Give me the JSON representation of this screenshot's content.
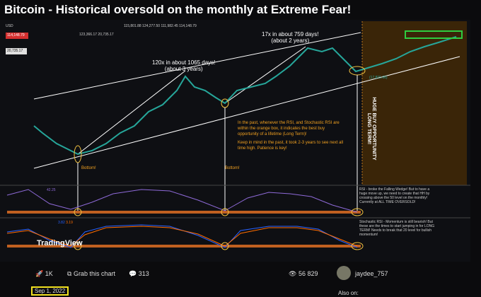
{
  "title": "Bitcoin - Historical oversold on the monthly at Extreme Fear!",
  "chart": {
    "currency": "USD",
    "last_price": "114,148.79",
    "ohlc": [
      "115,801.88",
      "124,277.50",
      "111,982.45",
      "114,148.79"
    ],
    "extra": [
      "123,366.17",
      "20,735.17"
    ],
    "price_marker": "20,735.17",
    "annotations": {
      "cycle_2": [
        "17x in about 759 days!",
        "(about 2 years)"
      ],
      "cycle_1": [
        "120x in about 1065 days!",
        "(about 3 years)"
      ],
      "bottom_1": "Bottom!",
      "bottom_2": "Bottom!",
      "low_label": "(17,815.66)",
      "vertical": [
        "HUGE BUY OPPORTUNITY",
        "LONG TERM!"
      ],
      "note_1": "In the past, whenever the RSI, and Stochastic RSI are within the orange box, it indicates the best buy opportunity of a lifetime (Long Term)!",
      "note_2": "Keep in mind in the past, it took 2-3 years to see next all time high. Patience is key!"
    },
    "rsi_value": "42.25",
    "stoch_values": [
      "3.82",
      "3.19"
    ],
    "rsi_note": "RSI - broke the Falling Wedge! But to have a huge move up, we need to create that HH by crossing above the 50 level on the monthly! Currently at ALL TIME OVERSOLD!",
    "stoch_note": "Stochastic RSI - Momentum is still bearish! But these are the times to start jumping in for LONG TERM! Needs to break that 20 level for bullish momentum!",
    "logo": "TradingView"
  },
  "footer": {
    "boosts": "1K",
    "grab": "Grab this chart",
    "comments": "313",
    "views": "56 829",
    "author": "jaydee_757",
    "date": "Sep 1, 2022",
    "also_on": "Also on:"
  }
}
